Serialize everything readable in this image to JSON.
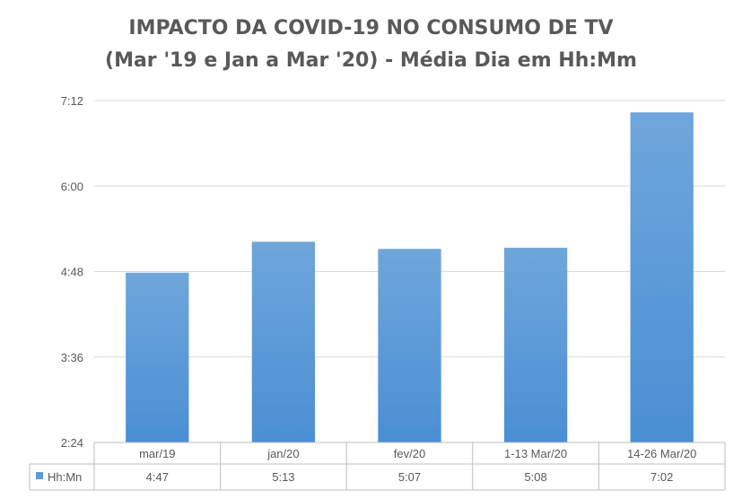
{
  "chart_data": {
    "type": "bar",
    "title": "IMPACTO DA COVID-19 NO CONSUMO DE TV",
    "subtitle": "(Mar '19 e Jan a Mar '20) - Média Dia em Hh:Mm",
    "categories": [
      "mar/19",
      "jan/20",
      "fev/20",
      "1-13 Mar/20",
      "14-26 Mar/20"
    ],
    "series": [
      {
        "name": "Hh:Mn",
        "values_minutes": [
          287,
          313,
          307,
          308,
          422
        ],
        "labels": [
          "4:47",
          "5:13",
          "5:07",
          "5:08",
          "7:02"
        ],
        "color": "#5b9bd5"
      }
    ],
    "yticks": [
      {
        "minutes": 144,
        "label": "2:24"
      },
      {
        "minutes": 216,
        "label": "3:36"
      },
      {
        "minutes": 288,
        "label": "4:48"
      },
      {
        "minutes": 360,
        "label": "6:00"
      },
      {
        "minutes": 432,
        "label": "7:12"
      }
    ],
    "ylim": [
      144,
      432
    ],
    "grid": true,
    "legend_position": "data-table",
    "data_table": true
  }
}
